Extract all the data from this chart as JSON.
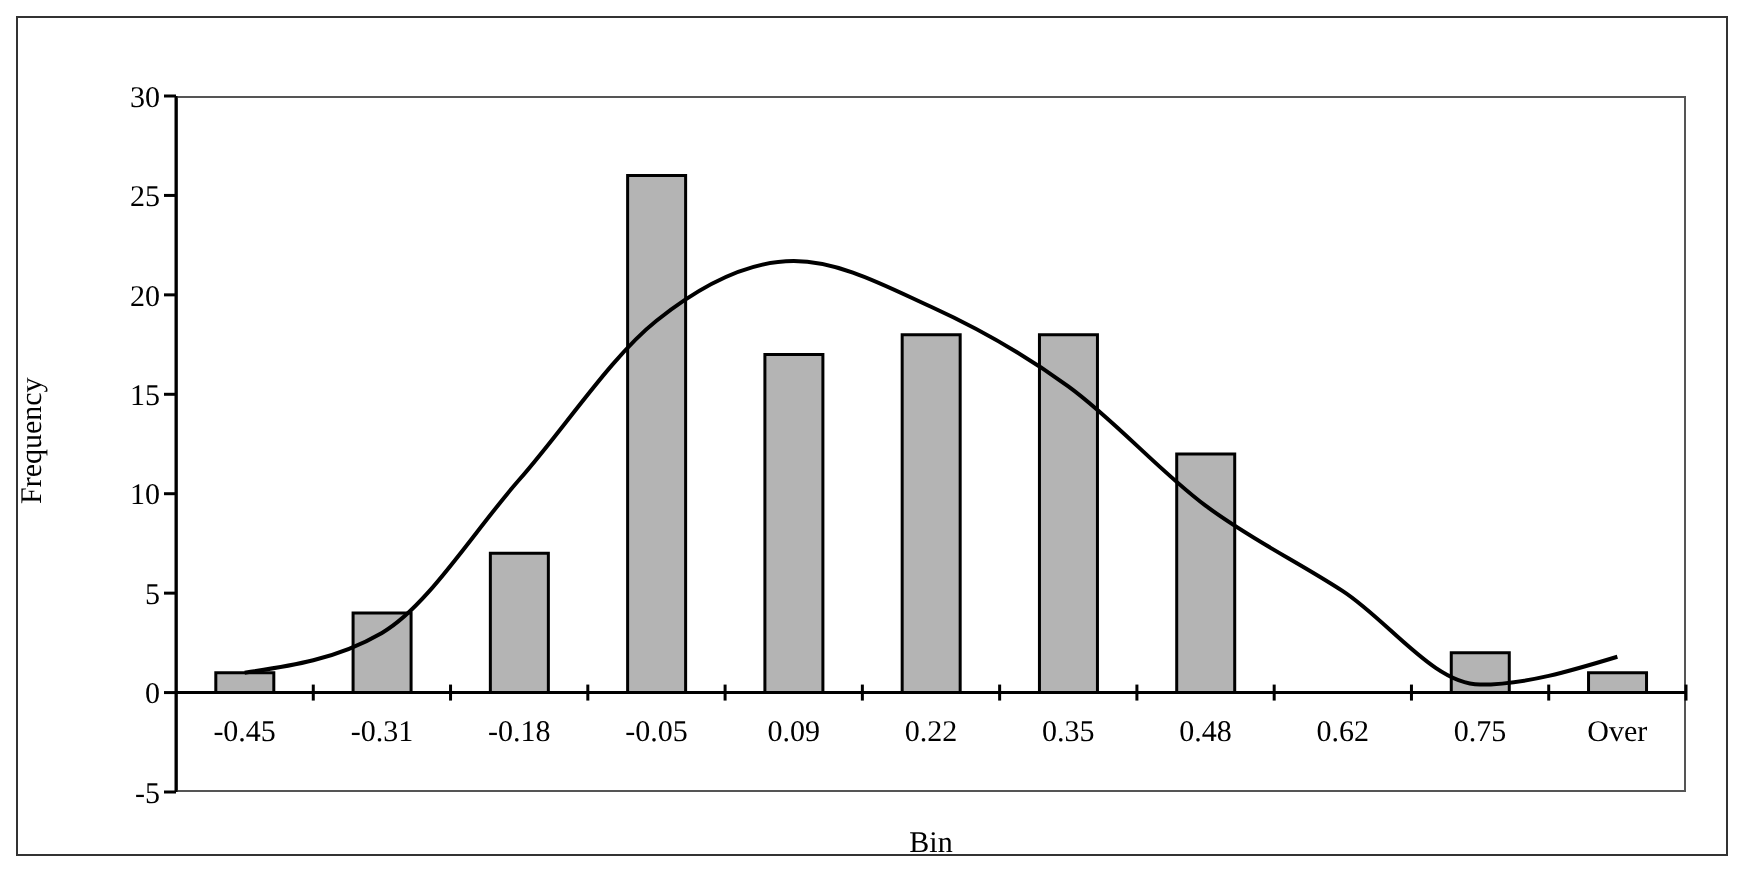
{
  "chart_data": {
    "type": "bar",
    "xlabel": "Bin",
    "ylabel": "Frequency",
    "categories": [
      "-0.45",
      "-0.31",
      "-0.18",
      "-0.05",
      "0.09",
      "0.22",
      "0.35",
      "0.48",
      "0.62",
      "0.75",
      "Over"
    ],
    "series": [
      {
        "color": "#b4b4b4",
        "values": [
          1,
          4,
          7,
          26,
          17,
          18,
          18,
          12,
          0,
          2,
          1
        ]
      },
      {
        "type": "line",
        "color": "#000000",
        "values": [
          1,
          3,
          10.7,
          18.7,
          21.7,
          19.4,
          15.4,
          9.4,
          5.1,
          0.4,
          1.8
        ]
      }
    ],
    "ylim": [
      -5,
      30
    ],
    "yticks": [
      -5,
      0,
      5,
      10,
      15,
      20,
      25,
      30
    ],
    "marker": "none",
    "line_style": "solid"
  }
}
